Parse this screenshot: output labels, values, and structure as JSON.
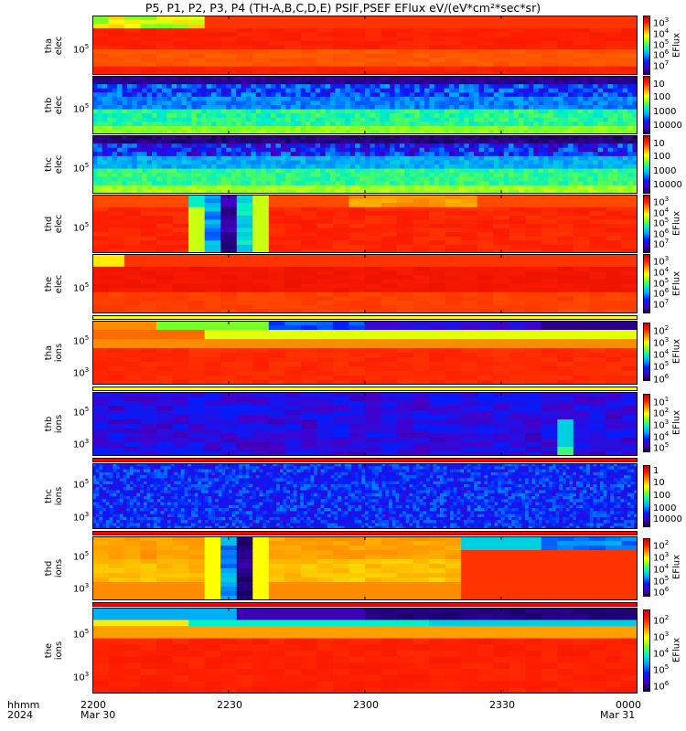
{
  "title": "P5, P1, P2, P3, P4 (TH-A,B,C,D,E) PSIF,PSEF EFlux eV/(eV*cm²*sec*sr)",
  "x_axis": {
    "row1_label": "hhmm",
    "row2_label": "2024",
    "ticks": [
      {
        "t": 0,
        "label": "2200",
        "sub": "Mar 30"
      },
      {
        "t": 30,
        "label": "2230",
        "sub": ""
      },
      {
        "t": 60,
        "label": "2300",
        "sub": ""
      },
      {
        "t": 90,
        "label": "2330",
        "sub": ""
      },
      {
        "t": 120,
        "label": "0000",
        "sub": "Mar 31"
      }
    ]
  },
  "colorbar_title": "EFlux",
  "chart_data": [
    {
      "type": "heatmap",
      "probe": "tha",
      "species": "elec",
      "ylabel": "tha elec",
      "ytick": "10^5",
      "colorbar_ticks": [
        "10^3",
        "10^4",
        "10^5",
        "10^6",
        "10^7"
      ]
    },
    {
      "type": "heatmap",
      "probe": "thb",
      "species": "elec",
      "ylabel": "thb elec",
      "ytick": "10^5",
      "colorbar_ticks": [
        "10",
        "100",
        "1000",
        "10000"
      ]
    },
    {
      "type": "heatmap",
      "probe": "thc",
      "species": "elec",
      "ylabel": "thc elec",
      "ytick": "10^5",
      "colorbar_ticks": [
        "10",
        "100",
        "1000",
        "10000"
      ]
    },
    {
      "type": "heatmap",
      "probe": "thd",
      "species": "elec",
      "ylabel": "thd elec",
      "ytick": "10^5",
      "colorbar_ticks": [
        "10^3",
        "10^4",
        "10^5",
        "10^6",
        "10^7"
      ]
    },
    {
      "type": "heatmap",
      "probe": "the",
      "species": "elec",
      "ylabel": "the elec",
      "ytick": "10^5",
      "colorbar_ticks": [
        "10^3",
        "10^4",
        "10^5",
        "10^6",
        "10^7"
      ]
    },
    {
      "type": "heatmap",
      "probe": "tha",
      "species": "ions",
      "ylabel": "tha ions",
      "ytick": "10^5",
      "ytick2": "10^3",
      "colorbar_ticks": [
        "10^2",
        "10^3",
        "10^4",
        "10^5",
        "10^6"
      ]
    },
    {
      "type": "heatmap",
      "probe": "thb",
      "species": "ions",
      "ylabel": "thb ions",
      "ytick": "10^5",
      "ytick2": "10^3",
      "colorbar_ticks": [
        "10^1",
        "10^2",
        "10^3",
        "10^4",
        "10^5"
      ]
    },
    {
      "type": "heatmap",
      "probe": "thc",
      "species": "ions",
      "ylabel": "thc ions",
      "ytick": "10^5",
      "ytick2": "10^3",
      "colorbar_ticks": [
        "1",
        "10",
        "100",
        "1000",
        "10000"
      ]
    },
    {
      "type": "heatmap",
      "probe": "thd",
      "species": "ions",
      "ylabel": "thd ions",
      "ytick": "10^5",
      "ytick2": "10^3",
      "colorbar_ticks": [
        "10^2",
        "10^3",
        "10^4",
        "10^5",
        "10^6"
      ]
    },
    {
      "type": "heatmap",
      "probe": "the",
      "species": "ions",
      "ylabel": "the ions",
      "ytick": "10^5",
      "ytick2": "10^3",
      "colorbar_ticks": [
        "10^2",
        "10^3",
        "10^4",
        "10^5",
        "10^6"
      ]
    }
  ]
}
